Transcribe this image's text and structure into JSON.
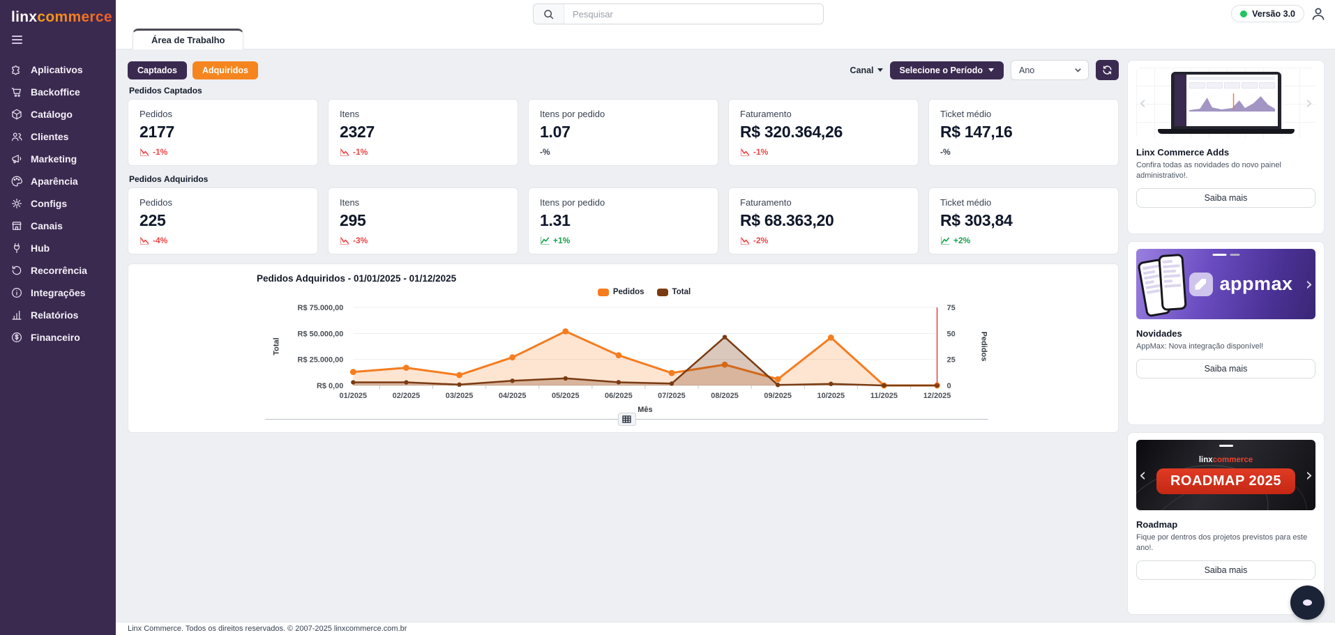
{
  "brand": {
    "linx": "linx",
    "commerce": "commerce"
  },
  "header": {
    "search_placeholder": "Pesquisar",
    "version": "Versão 3.0"
  },
  "tab": {
    "label": "Área de Trabalho"
  },
  "sidebar": {
    "items": [
      "Aplicativos",
      "Backoffice",
      "Catálogo",
      "Clientes",
      "Marketing",
      "Aparência",
      "Configs",
      "Canais",
      "Hub",
      "Recorrência",
      "Integrações",
      "Relatórios",
      "Financeiro"
    ]
  },
  "toolbar": {
    "captados": "Captados",
    "adquiridos": "Adquiridos",
    "canal": "Canal",
    "periodo": "Selecione o Período",
    "ano": "Ano"
  },
  "sections": [
    {
      "title_prefix": "Pedidos",
      "title_bold": "Captados",
      "cards": [
        {
          "label": "Pedidos",
          "value": "2177",
          "trend": "-1%",
          "dir": "down"
        },
        {
          "label": "Itens",
          "value": "2327",
          "trend": "-1%",
          "dir": "down"
        },
        {
          "label": "Itens por pedido",
          "value": "1.07",
          "trend": "-%",
          "dir": "neutral"
        },
        {
          "label": "Faturamento",
          "value": "R$ 320.364,26",
          "trend": "-1%",
          "dir": "down"
        },
        {
          "label": "Ticket médio",
          "value": "R$ 147,16",
          "trend": "-%",
          "dir": "neutral"
        }
      ]
    },
    {
      "title_prefix": "Pedidos",
      "title_bold": "Adquiridos",
      "cards": [
        {
          "label": "Pedidos",
          "value": "225",
          "trend": "-4%",
          "dir": "down"
        },
        {
          "label": "Itens",
          "value": "295",
          "trend": "-3%",
          "dir": "down"
        },
        {
          "label": "Itens por pedido",
          "value": "1.31",
          "trend": "+1%",
          "dir": "up"
        },
        {
          "label": "Faturamento",
          "value": "R$ 68.363,20",
          "trend": "-2%",
          "dir": "down"
        },
        {
          "label": "Ticket médio",
          "value": "R$ 303,84",
          "trend": "+2%",
          "dir": "up"
        }
      ]
    }
  ],
  "chart_data": {
    "type": "line",
    "title": "Pedidos Adquiridos - 01/01/2025 - 01/12/2025",
    "x": [
      "01/2025",
      "02/2025",
      "03/2025",
      "04/2025",
      "05/2025",
      "06/2025",
      "07/2025",
      "08/2025",
      "09/2025",
      "10/2025",
      "11/2025",
      "12/2025"
    ],
    "xlabel": "Mês",
    "grid": true,
    "legend_position": "top-center",
    "left_axis": {
      "title": "Total",
      "max": 75000,
      "tick_values": [
        0,
        25000,
        50000,
        75000
      ],
      "tick_labels": [
        "R$ 0,00",
        "R$ 25.000,00",
        "R$ 50.000,00",
        "R$ 75.000,00"
      ]
    },
    "right_axis": {
      "title": "Pedidos",
      "max": 75,
      "tick_values": [
        0,
        25,
        50,
        75
      ],
      "tick_labels": [
        "0",
        "25",
        "50",
        "75"
      ]
    },
    "series": [
      {
        "name": "Pedidos",
        "axis": "right",
        "color": "#F57C1F",
        "fill": "rgba(245,124,31,0.20)",
        "values": [
          13,
          17,
          10,
          27,
          52,
          29,
          12,
          20,
          6,
          46,
          0,
          0
        ]
      },
      {
        "name": "Total",
        "axis": "left",
        "color": "#7A3B12",
        "fill": "rgba(122,59,18,0.28)",
        "values": [
          3000,
          3000,
          800,
          4500,
          6800,
          3100,
          1800,
          46500,
          500,
          1500,
          0,
          0
        ]
      }
    ],
    "marker_line": {
      "x": "12/2025",
      "color": "#E0342B"
    }
  },
  "promos": [
    {
      "title": "Linx Commerce Adds",
      "description": "Confira todas as novidades do novo painel administrativo!.",
      "button": "Saiba mais"
    },
    {
      "title": "Novidades",
      "description": "AppMax: Nova integração disponível!",
      "button": "Saiba mais",
      "banner_text": "appmax"
    },
    {
      "title": "Roadmap",
      "description": "Fique por dentros dos projetos previstos para este ano!.",
      "button": "Saiba mais",
      "banner_brand_linx": "linx",
      "banner_brand_commerce": "commerce",
      "banner_title": "ROADMAP 2025"
    }
  ],
  "footer": {
    "text": "Linx Commerce. Todos os direitos reservados. © 2007-2025 linxcommerce.com.br"
  },
  "colors": {
    "sidebar": "#3B2A50",
    "accent_orange": "#F5861F",
    "purple_button": "#3B2A50",
    "trend_down": "#EF4444",
    "trend_up": "#16A34A",
    "version_dot": "#22C55E",
    "chart_orange": "#F57C1F",
    "chart_brown": "#7A3B12",
    "marker_red": "#E0342B"
  }
}
